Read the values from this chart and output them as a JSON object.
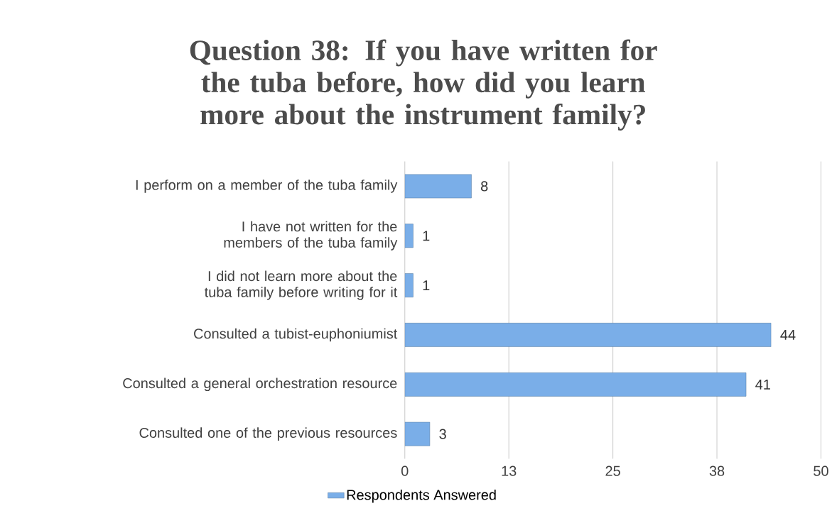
{
  "chart_data": {
    "type": "bar",
    "orientation": "horizontal",
    "title": "Question 38: If you have written for the tuba before, how did you learn more about the instrument family?",
    "categories": [
      "I perform on a member of the tuba family",
      "I have not written for the members of the tuba family",
      "I did not learn more about the tuba family before writing for it",
      "Consulted a tubist-euphoniumist",
      "Consulted a general orchestration resource",
      "Consulted one of the previous resources"
    ],
    "series": [
      {
        "name": "Respondents Answered",
        "color": "#7aaee8",
        "values": [
          8,
          1,
          1,
          44,
          41,
          3
        ]
      }
    ],
    "xlim": [
      0,
      50
    ],
    "xticks": [
      0,
      {
        "value": 12.5,
        "label": "13"
      },
      25,
      {
        "value": 37.5,
        "label": "38"
      },
      50
    ],
    "grid": "x",
    "legend": "bottom",
    "data_labels": true
  }
}
